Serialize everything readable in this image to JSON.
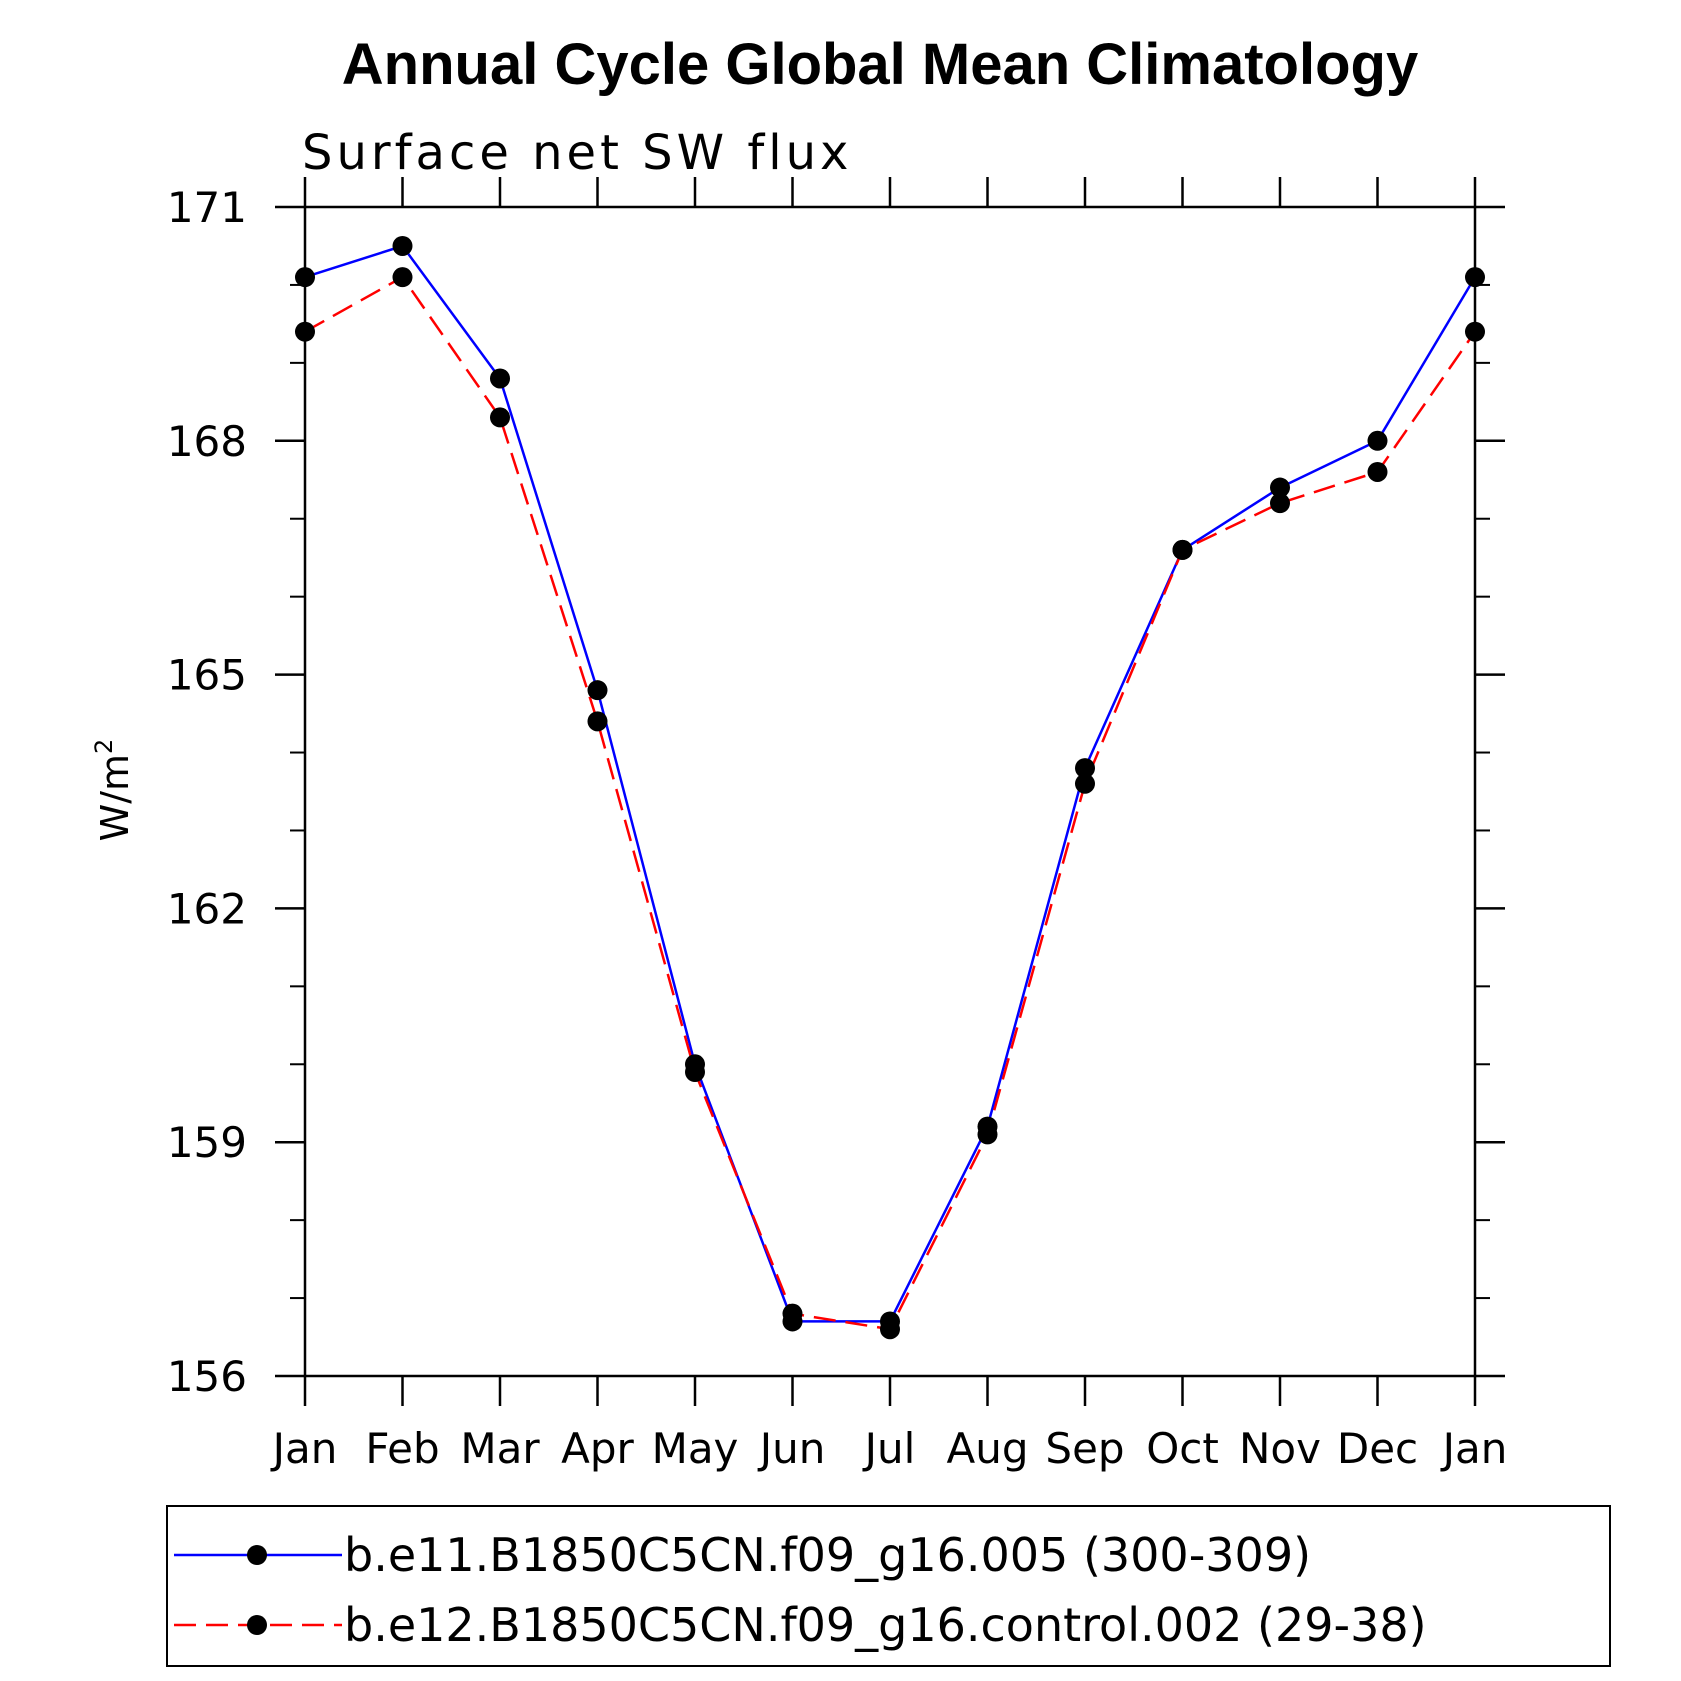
{
  "chart_data": {
    "type": "line",
    "title": "Annual Cycle Global Mean Climatology",
    "subtitle": "Surface net SW flux",
    "xlabel": "",
    "ylabel": "W/m",
    "ylabel_superscript": "2",
    "categories": [
      "Jan",
      "Feb",
      "Mar",
      "Apr",
      "May",
      "Jun",
      "Jul",
      "Aug",
      "Sep",
      "Oct",
      "Nov",
      "Dec",
      "Jan"
    ],
    "ylim": [
      156,
      171
    ],
    "yticks": [
      156,
      159,
      162,
      165,
      168,
      171
    ],
    "ytick_labels": [
      "156",
      "159",
      "162",
      "165",
      "168",
      "171"
    ],
    "y_minor_step": 1,
    "legend_position": "bottom",
    "series": [
      {
        "name": "b.e11.B1850C5CN.f09_g16.005 (300-309)",
        "color": "#0000ff",
        "dashed": false,
        "values": [
          170.1,
          170.5,
          168.8,
          164.8,
          160.0,
          156.7,
          156.7,
          159.2,
          163.8,
          166.6,
          167.4,
          168.0,
          170.1
        ]
      },
      {
        "name": "b.e12.B1850C5CN.f09_g16.control.002 (29-38)",
        "color": "#ff0000",
        "dashed": true,
        "values": [
          169.4,
          170.1,
          168.3,
          164.4,
          159.9,
          156.8,
          156.6,
          159.1,
          163.6,
          166.6,
          167.2,
          167.6,
          169.4
        ]
      }
    ]
  }
}
